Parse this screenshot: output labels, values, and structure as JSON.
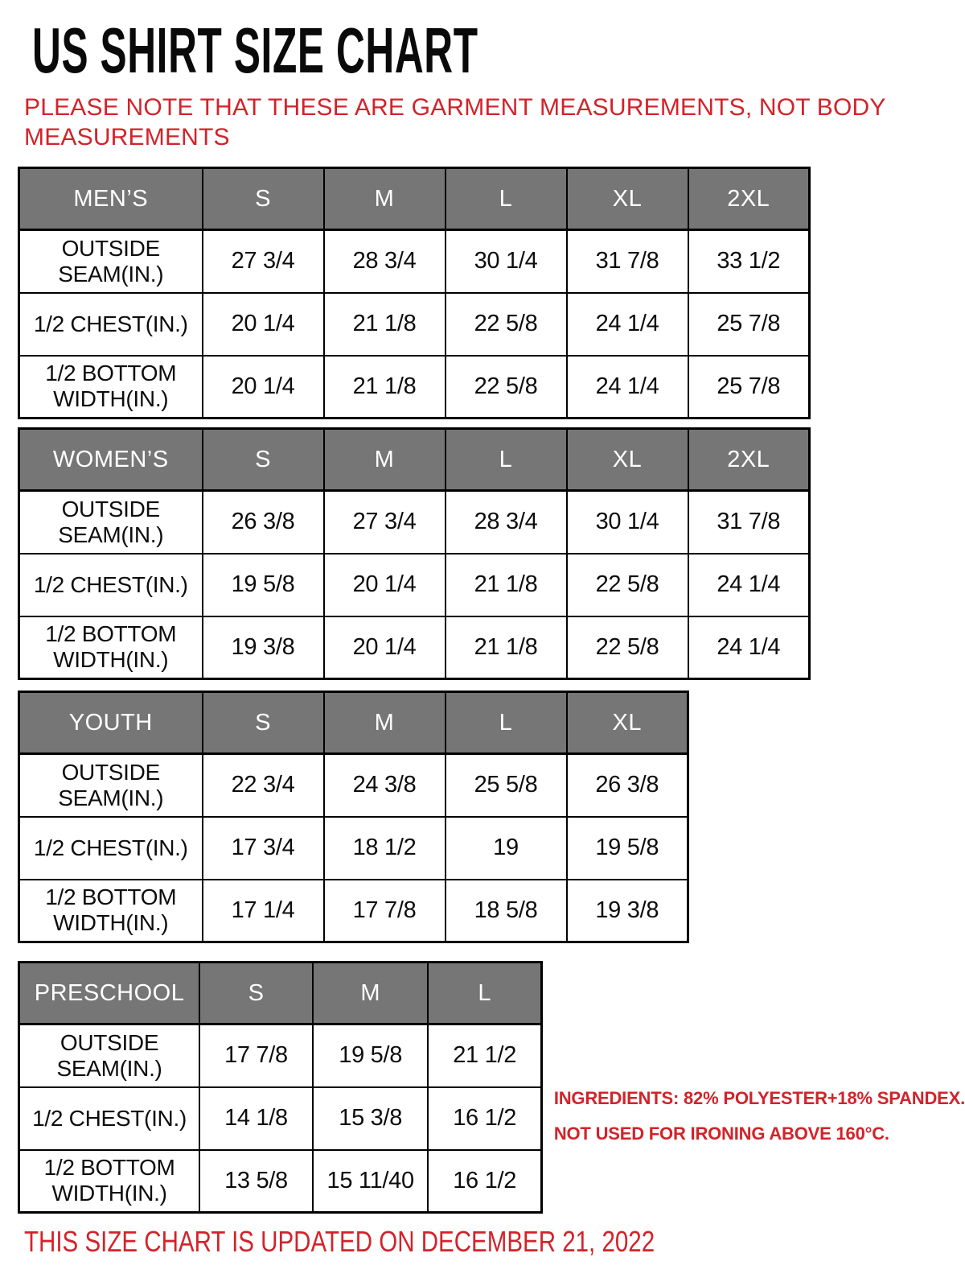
{
  "header": {
    "title": "US SHIRT SIZE CHART",
    "note": "PLEASE NOTE THAT THESE ARE GARMENT MEASUREMENTS, NOT BODY\nMEASUREMENTS"
  },
  "tables": [
    {
      "name": "mens",
      "header": [
        "MEN’S",
        "S",
        "M",
        "L",
        "XL",
        "2XL"
      ],
      "rows": [
        {
          "label": "OUTSIDE SEAM(IN.)",
          "values": [
            "27 3/4",
            "28 3/4",
            "30 1/4",
            "31 7/8",
            "33 1/2"
          ]
        },
        {
          "label": "1/2 CHEST(IN.)",
          "values": [
            "20 1/4",
            "21 1/8",
            "22 5/8",
            "24 1/4",
            "25 7/8"
          ]
        },
        {
          "label": "1/2 BOTTOM WIDTH(IN.)",
          "values": [
            "20 1/4",
            "21 1/8",
            "22 5/8",
            "24 1/4",
            "25 7/8"
          ]
        }
      ]
    },
    {
      "name": "womens",
      "header": [
        "WOMEN’S",
        "S",
        "M",
        "L",
        "XL",
        "2XL"
      ],
      "rows": [
        {
          "label": "OUTSIDE SEAM(IN.)",
          "values": [
            "26 3/8",
            "27 3/4",
            "28 3/4",
            "30 1/4",
            "31 7/8"
          ]
        },
        {
          "label": "1/2 CHEST(IN.)",
          "values": [
            "19 5/8",
            "20 1/4",
            "21 1/8",
            "22 5/8",
            "24 1/4"
          ]
        },
        {
          "label": "1/2 BOTTOM WIDTH(IN.)",
          "values": [
            "19 3/8",
            "20 1/4",
            "21 1/8",
            "22 5/8",
            "24 1/4"
          ]
        }
      ]
    },
    {
      "name": "youth",
      "header": [
        "YOUTH",
        "S",
        "M",
        "L",
        "XL"
      ],
      "rows": [
        {
          "label": "OUTSIDE SEAM(IN.)",
          "values": [
            "22 3/4",
            "24 3/8",
            "25 5/8",
            "26 3/8"
          ]
        },
        {
          "label": "1/2 CHEST(IN.)",
          "values": [
            "17 3/4",
            "18 1/2",
            "19",
            "19 5/8"
          ]
        },
        {
          "label": "1/2 BOTTOM WIDTH(IN.)",
          "values": [
            "17 1/4",
            "17 7/8",
            "18 5/8",
            "19 3/8"
          ]
        }
      ]
    },
    {
      "name": "preschool",
      "header": [
        "PRESCHOOL",
        "S",
        "M",
        "L"
      ],
      "rows": [
        {
          "label": "OUTSIDE SEAM(IN.)",
          "values": [
            "17 7/8",
            "19 5/8",
            "21 1/2"
          ]
        },
        {
          "label": "1/2 CHEST(IN.)",
          "values": [
            "14 1/8",
            "15 3/8",
            "16 1/2"
          ]
        },
        {
          "label": "1/2 BOTTOM WIDTH(IN.)",
          "values": [
            "13 5/8",
            "15 11/40",
            "16 1/2"
          ]
        }
      ]
    }
  ],
  "ingredients": {
    "line1": "INGREDIENTS: 82% POLYESTER+18% SPANDEX.",
    "line2": "NOT USED FOR IRONING ABOVE 160°C."
  },
  "footer": {
    "updated_text": "THIS SIZE CHART IS UPDATED ON DECEMBER 21, 2022"
  },
  "colors": {
    "accent_red": "#d2232a",
    "header_gray": "#767676",
    "header_text": "#ffffff",
    "border_black": "#000000",
    "title_black": "#0a0a0a"
  }
}
